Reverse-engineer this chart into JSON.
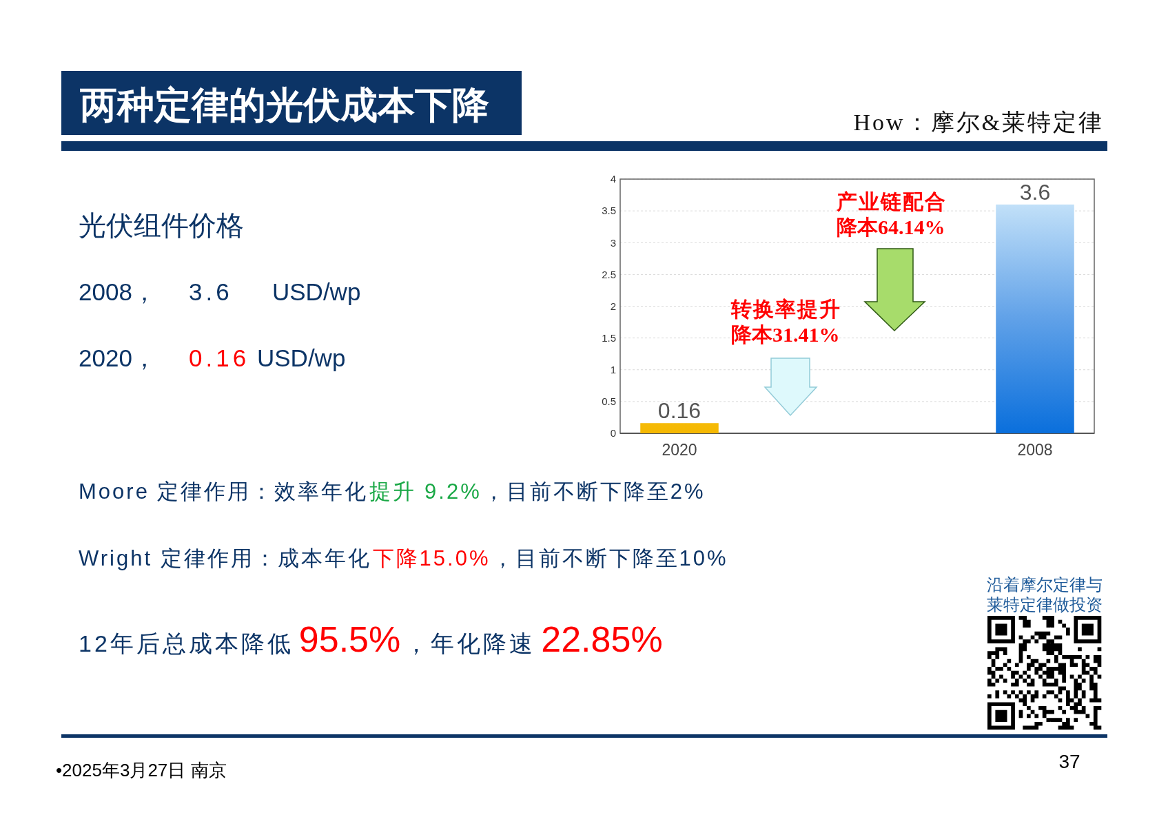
{
  "chart_data": {
    "type": "bar",
    "title": "两种定律的光伏成本下降",
    "subtitle": "How：摩尔&莱特定律",
    "categories": [
      "2020",
      null,
      null,
      "2008"
    ],
    "values": [
      0.16,
      null,
      null,
      3.6
    ],
    "colors": [
      "#f5b800",
      null,
      null,
      "#0a6fdc"
    ],
    "ylim": [
      0,
      4
    ],
    "yticks": [
      0,
      0.5,
      1,
      1.5,
      2,
      2.5,
      3,
      3.5,
      4
    ],
    "grid": "y",
    "data_labels": true,
    "annotations": [
      "光伏组件价格",
      "2008，",
      "3.6",
      "USD/wp",
      "2020，",
      "0.16",
      "USD/wp",
      "Moore 定律作用：效率年化",
      "提升 9.2%",
      "，目前不断下降至2%",
      "Wright 定律作用：成本年化",
      "下降15.0%",
      "，目前不断下降至10%",
      "12年后总成本降低",
      "95.5%",
      "，年化降速",
      "22.85%",
      "产业链配合",
      "降本64.14%",
      "转换率提升",
      "降本31.41%",
      "沿着摩尔定律与",
      "莱特定律做投资",
      "•2025年3月27日 南京",
      "37"
    ]
  }
}
